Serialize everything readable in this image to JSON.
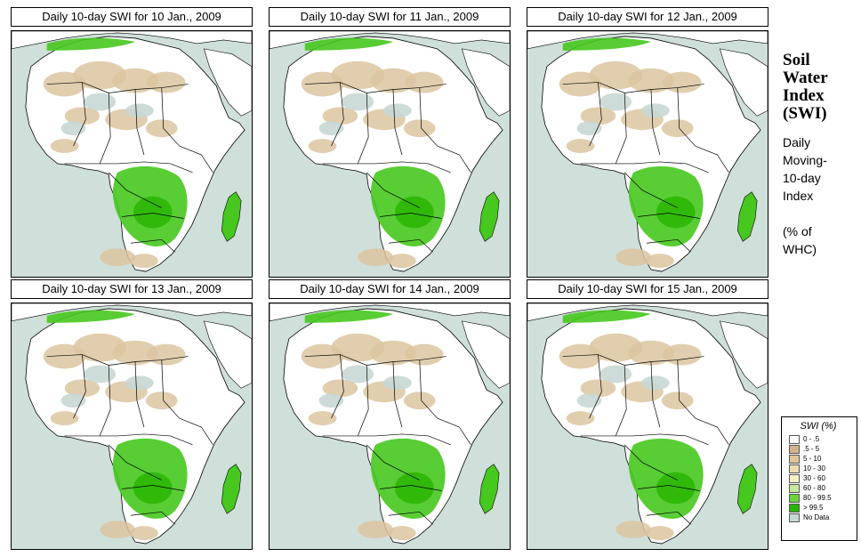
{
  "panels": [
    {
      "title": "Daily 10-day SWI for  10 Jan., 2009"
    },
    {
      "title": "Daily 10-day SWI for  11 Jan., 2009"
    },
    {
      "title": "Daily 10-day SWI for  12 Jan., 2009"
    },
    {
      "title": "Daily 10-day SWI for  13 Jan., 2009"
    },
    {
      "title": "Daily 10-day SWI for  14 Jan., 2009"
    },
    {
      "title": "Daily 10-day SWI for  15 Jan., 2009"
    }
  ],
  "side": {
    "title_lines": [
      "Soil",
      "Water",
      "Index",
      "(SWI)"
    ],
    "desc_lines": [
      "Daily",
      "Moving-",
      "10-day",
      "Index",
      "",
      "(% of",
      " WHC)"
    ]
  },
  "legend": {
    "title": "SWI (%)",
    "items": [
      {
        "label": "0 - .5",
        "color": "#ffffff"
      },
      {
        "label": ".5 - 5",
        "color": "#d2b48c"
      },
      {
        "label": "5 - 10",
        "color": "#e0c49a"
      },
      {
        "label": "10 - 30",
        "color": "#f0dcb4"
      },
      {
        "label": "30 - 60",
        "color": "#f5f0c8"
      },
      {
        "label": "60 - 80",
        "color": "#c8e8a0"
      },
      {
        "label": "80 - 99.5",
        "color": "#6ed23c"
      },
      {
        "label": "> 99.5",
        "color": "#28b400"
      },
      {
        "label": "No Data",
        "color": "#c8d8d4"
      }
    ]
  },
  "colors": {
    "ocean": "#cfdfda",
    "land": "#ffffff",
    "sahara": "#dcc6a0",
    "green": "#46c81e",
    "border": "#000000"
  }
}
